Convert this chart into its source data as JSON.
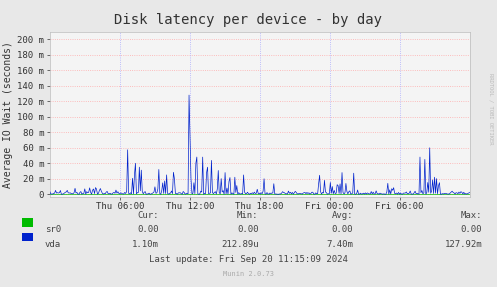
{
  "title": "Disk latency per device - by day",
  "ylabel": "Average IO Wait (seconds)",
  "background_color": "#e8e8e8",
  "plot_bg_color": "#f0f0f0",
  "yticks": [
    0,
    20,
    40,
    60,
    80,
    100,
    120,
    140,
    160,
    180,
    200
  ],
  "ytick_labels": [
    "0",
    "20 m",
    "40 m",
    "60 m",
    "80 m",
    "100 m",
    "120 m",
    "140 m",
    "160 m",
    "180 m",
    "200 m"
  ],
  "ylim": [
    -3,
    210
  ],
  "xtick_labels": [
    "Thu 06:00",
    "Thu 12:00",
    "Thu 18:00",
    "Fri 00:00",
    "Fri 06:00"
  ],
  "line_color_sr0": "#00bb00",
  "line_color_vda": "#0022cc",
  "footer_text": "Last update: Fri Sep 20 11:15:09 2024",
  "munin_text": "Munin 2.0.73",
  "rrdtool_text": "RRDTOOL / TOBI OETIKER",
  "stats_header": [
    "Cur:",
    "Min:",
    "Avg:",
    "Max:"
  ],
  "stats_sr0": [
    "0.00",
    "0.00",
    "0.00",
    "0.00"
  ],
  "stats_vda": [
    "1.10m",
    "212.89u",
    "7.40m",
    "127.92m"
  ],
  "title_fontsize": 10,
  "axis_fontsize": 7,
  "tick_fontsize": 6.5,
  "stats_fontsize": 6.5
}
